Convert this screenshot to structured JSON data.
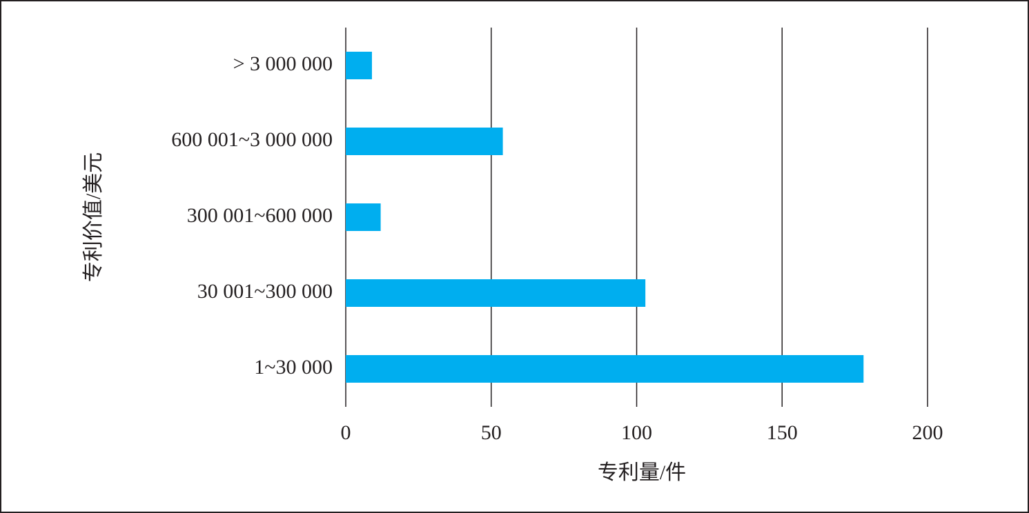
{
  "chart_data": {
    "type": "barh",
    "x_label": "专利量/件",
    "y_label": "专利价值/美元",
    "categories": [
      "1~30 000",
      "30 001~300 000",
      "300 001~600 000",
      "600 001~3 000 000",
      "> 3 000 000"
    ],
    "values": [
      178,
      103,
      12,
      54,
      9
    ],
    "color": "#00aeef",
    "xlim": [
      0,
      200
    ],
    "xticks": [
      0,
      50,
      100,
      150,
      200
    ],
    "grid": true
  }
}
